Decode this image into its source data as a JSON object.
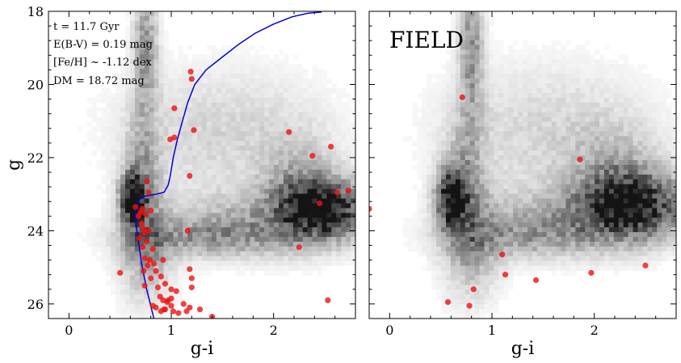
{
  "chart_data": [
    {
      "type": "scatter",
      "panel": "left",
      "title": "",
      "xlabel": "g-i",
      "ylabel": "g",
      "xlim": [
        -0.2,
        2.8
      ],
      "ylim": [
        26.4,
        18.0
      ],
      "xticks": [
        0,
        1,
        2
      ],
      "yticks": [
        18,
        20,
        22,
        24,
        26
      ],
      "annotations": [
        "t = 11.7 Gyr",
        "E(B-V) = 0.19 mag",
        "[Fe/H] ~  -1.12 dex",
        "DM = 18.72 mag"
      ],
      "density_background": {
        "description": "grayscale Hess-diagram style density",
        "clumps": [
          {
            "x": 0.62,
            "y": 23.1,
            "sx": 0.08,
            "sy": 0.45,
            "w": 1.0
          },
          {
            "x": 0.72,
            "y": 22.6,
            "sx": 0.12,
            "sy": 1.2,
            "w": 0.35
          },
          {
            "x": 0.75,
            "y": 24.5,
            "sx": 0.18,
            "sy": 1.0,
            "w": 0.35
          },
          {
            "x": 0.75,
            "y": 19.0,
            "sx": 0.08,
            "sy": 1.2,
            "w": 0.45
          },
          {
            "x": 2.5,
            "y": 23.4,
            "sx": 0.3,
            "sy": 0.55,
            "w": 0.9
          },
          {
            "x": 2.25,
            "y": 22.8,
            "sx": 0.25,
            "sy": 0.9,
            "w": 0.3
          },
          {
            "x": 1.8,
            "y": 23.8,
            "sx": 0.6,
            "sy": 0.6,
            "w": 0.3
          },
          {
            "x": 1.5,
            "y": 21.3,
            "sx": 0.7,
            "sy": 1.2,
            "w": 0.18
          },
          {
            "x": 1.3,
            "y": 24.2,
            "sx": 0.5,
            "sy": 0.35,
            "w": 0.3
          }
        ]
      },
      "isochrone": {
        "color": "#0000dd",
        "x": [
          0.83,
          0.76,
          0.71,
          0.68,
          0.66,
          0.65,
          0.655,
          0.68,
          0.75,
          0.85,
          0.93,
          0.97,
          0.99,
          1.02,
          1.06,
          1.11,
          1.16,
          1.23,
          1.34,
          1.5,
          1.66,
          1.82,
          2.0,
          2.18,
          2.34,
          2.47
        ],
        "y": [
          26.4,
          25.6,
          24.9,
          24.3,
          23.9,
          23.6,
          23.3,
          23.15,
          23.05,
          23.0,
          22.95,
          22.75,
          22.5,
          22.0,
          21.5,
          21.0,
          20.5,
          20.0,
          19.6,
          19.25,
          18.9,
          18.6,
          18.35,
          18.15,
          18.05,
          18.02
        ]
      },
      "points": {
        "color": "#ee1111",
        "x": [
          1.19,
          1.2,
          1.03,
          1.22,
          1.03,
          0.99,
          1.18,
          0.76,
          0.78,
          0.65,
          0.7,
          0.72,
          0.75,
          0.8,
          0.68,
          0.71,
          0.73,
          0.74,
          0.69,
          0.78,
          0.76,
          0.72,
          0.82,
          0.74,
          0.79,
          0.77,
          0.73,
          0.83,
          0.85,
          0.92,
          0.9,
          0.8,
          0.74,
          0.87,
          0.94,
          1.0,
          0.89,
          1.05,
          0.96,
          1.0,
          0.82,
          0.93,
          1.18,
          1.2,
          1.2,
          0.5,
          1.02,
          1.18,
          2.15,
          2.38,
          2.56,
          2.45,
          2.62,
          2.73,
          2.25,
          2.53,
          1.16,
          0.85,
          0.9,
          0.94,
          1.0,
          1.07,
          1.15,
          1.28,
          1.4,
          0.92,
          0.97,
          1.12
        ],
        "y": [
          19.65,
          19.85,
          20.65,
          21.25,
          21.45,
          21.5,
          22.5,
          22.65,
          22.95,
          23.35,
          23.5,
          23.4,
          23.55,
          23.45,
          23.6,
          23.8,
          23.95,
          24.05,
          24.2,
          24.0,
          24.3,
          24.45,
          24.5,
          24.75,
          24.8,
          24.95,
          25.1,
          24.9,
          25.1,
          24.8,
          25.25,
          25.3,
          25.5,
          25.55,
          25.45,
          25.6,
          25.8,
          25.65,
          25.95,
          25.85,
          26.05,
          26.15,
          25.05,
          25.3,
          25.55,
          25.15,
          26.2,
          26.1,
          21.3,
          21.95,
          21.7,
          23.25,
          22.95,
          22.9,
          24.45,
          25.9,
          24.0,
          26.1,
          26.2,
          26.15,
          26.05,
          26.25,
          26.2,
          26.15,
          26.35,
          25.9,
          25.9,
          26.0
        ]
      }
    },
    {
      "type": "scatter",
      "panel": "right",
      "title": "",
      "xlabel": "g-i",
      "ylabel": "",
      "xlim": [
        -0.2,
        2.8
      ],
      "ylim": [
        26.4,
        18.0
      ],
      "xticks": [
        0,
        1,
        2
      ],
      "yticks": [],
      "annotations": [
        "FIELD"
      ],
      "density_background": {
        "description": "grayscale Hess-diagram style density",
        "clumps": [
          {
            "x": 0.6,
            "y": 23.1,
            "sx": 0.1,
            "sy": 0.55,
            "w": 0.9
          },
          {
            "x": 0.75,
            "y": 22.6,
            "sx": 0.14,
            "sy": 1.3,
            "w": 0.3
          },
          {
            "x": 0.8,
            "y": 24.4,
            "sx": 0.2,
            "sy": 1.0,
            "w": 0.3
          },
          {
            "x": 0.8,
            "y": 19.0,
            "sx": 0.08,
            "sy": 1.3,
            "w": 0.45
          },
          {
            "x": 2.4,
            "y": 23.3,
            "sx": 0.35,
            "sy": 0.6,
            "w": 0.85
          },
          {
            "x": 2.2,
            "y": 22.6,
            "sx": 0.3,
            "sy": 1.0,
            "w": 0.3
          },
          {
            "x": 1.7,
            "y": 23.7,
            "sx": 0.6,
            "sy": 0.6,
            "w": 0.28
          },
          {
            "x": 1.5,
            "y": 21.3,
            "sx": 0.7,
            "sy": 1.3,
            "w": 0.17
          },
          {
            "x": 1.3,
            "y": 24.2,
            "sx": 0.5,
            "sy": 0.4,
            "w": 0.25
          }
        ]
      },
      "points": {
        "color": "#ee1111",
        "x": [
          0.71,
          1.86,
          -0.2,
          1.1,
          1.13,
          1.43,
          1.97,
          2.5,
          0.82,
          0.57,
          0.78
        ],
        "y": [
          20.35,
          22.05,
          23.4,
          24.65,
          25.2,
          25.35,
          25.15,
          24.95,
          25.6,
          25.95,
          26.05
        ]
      }
    }
  ]
}
